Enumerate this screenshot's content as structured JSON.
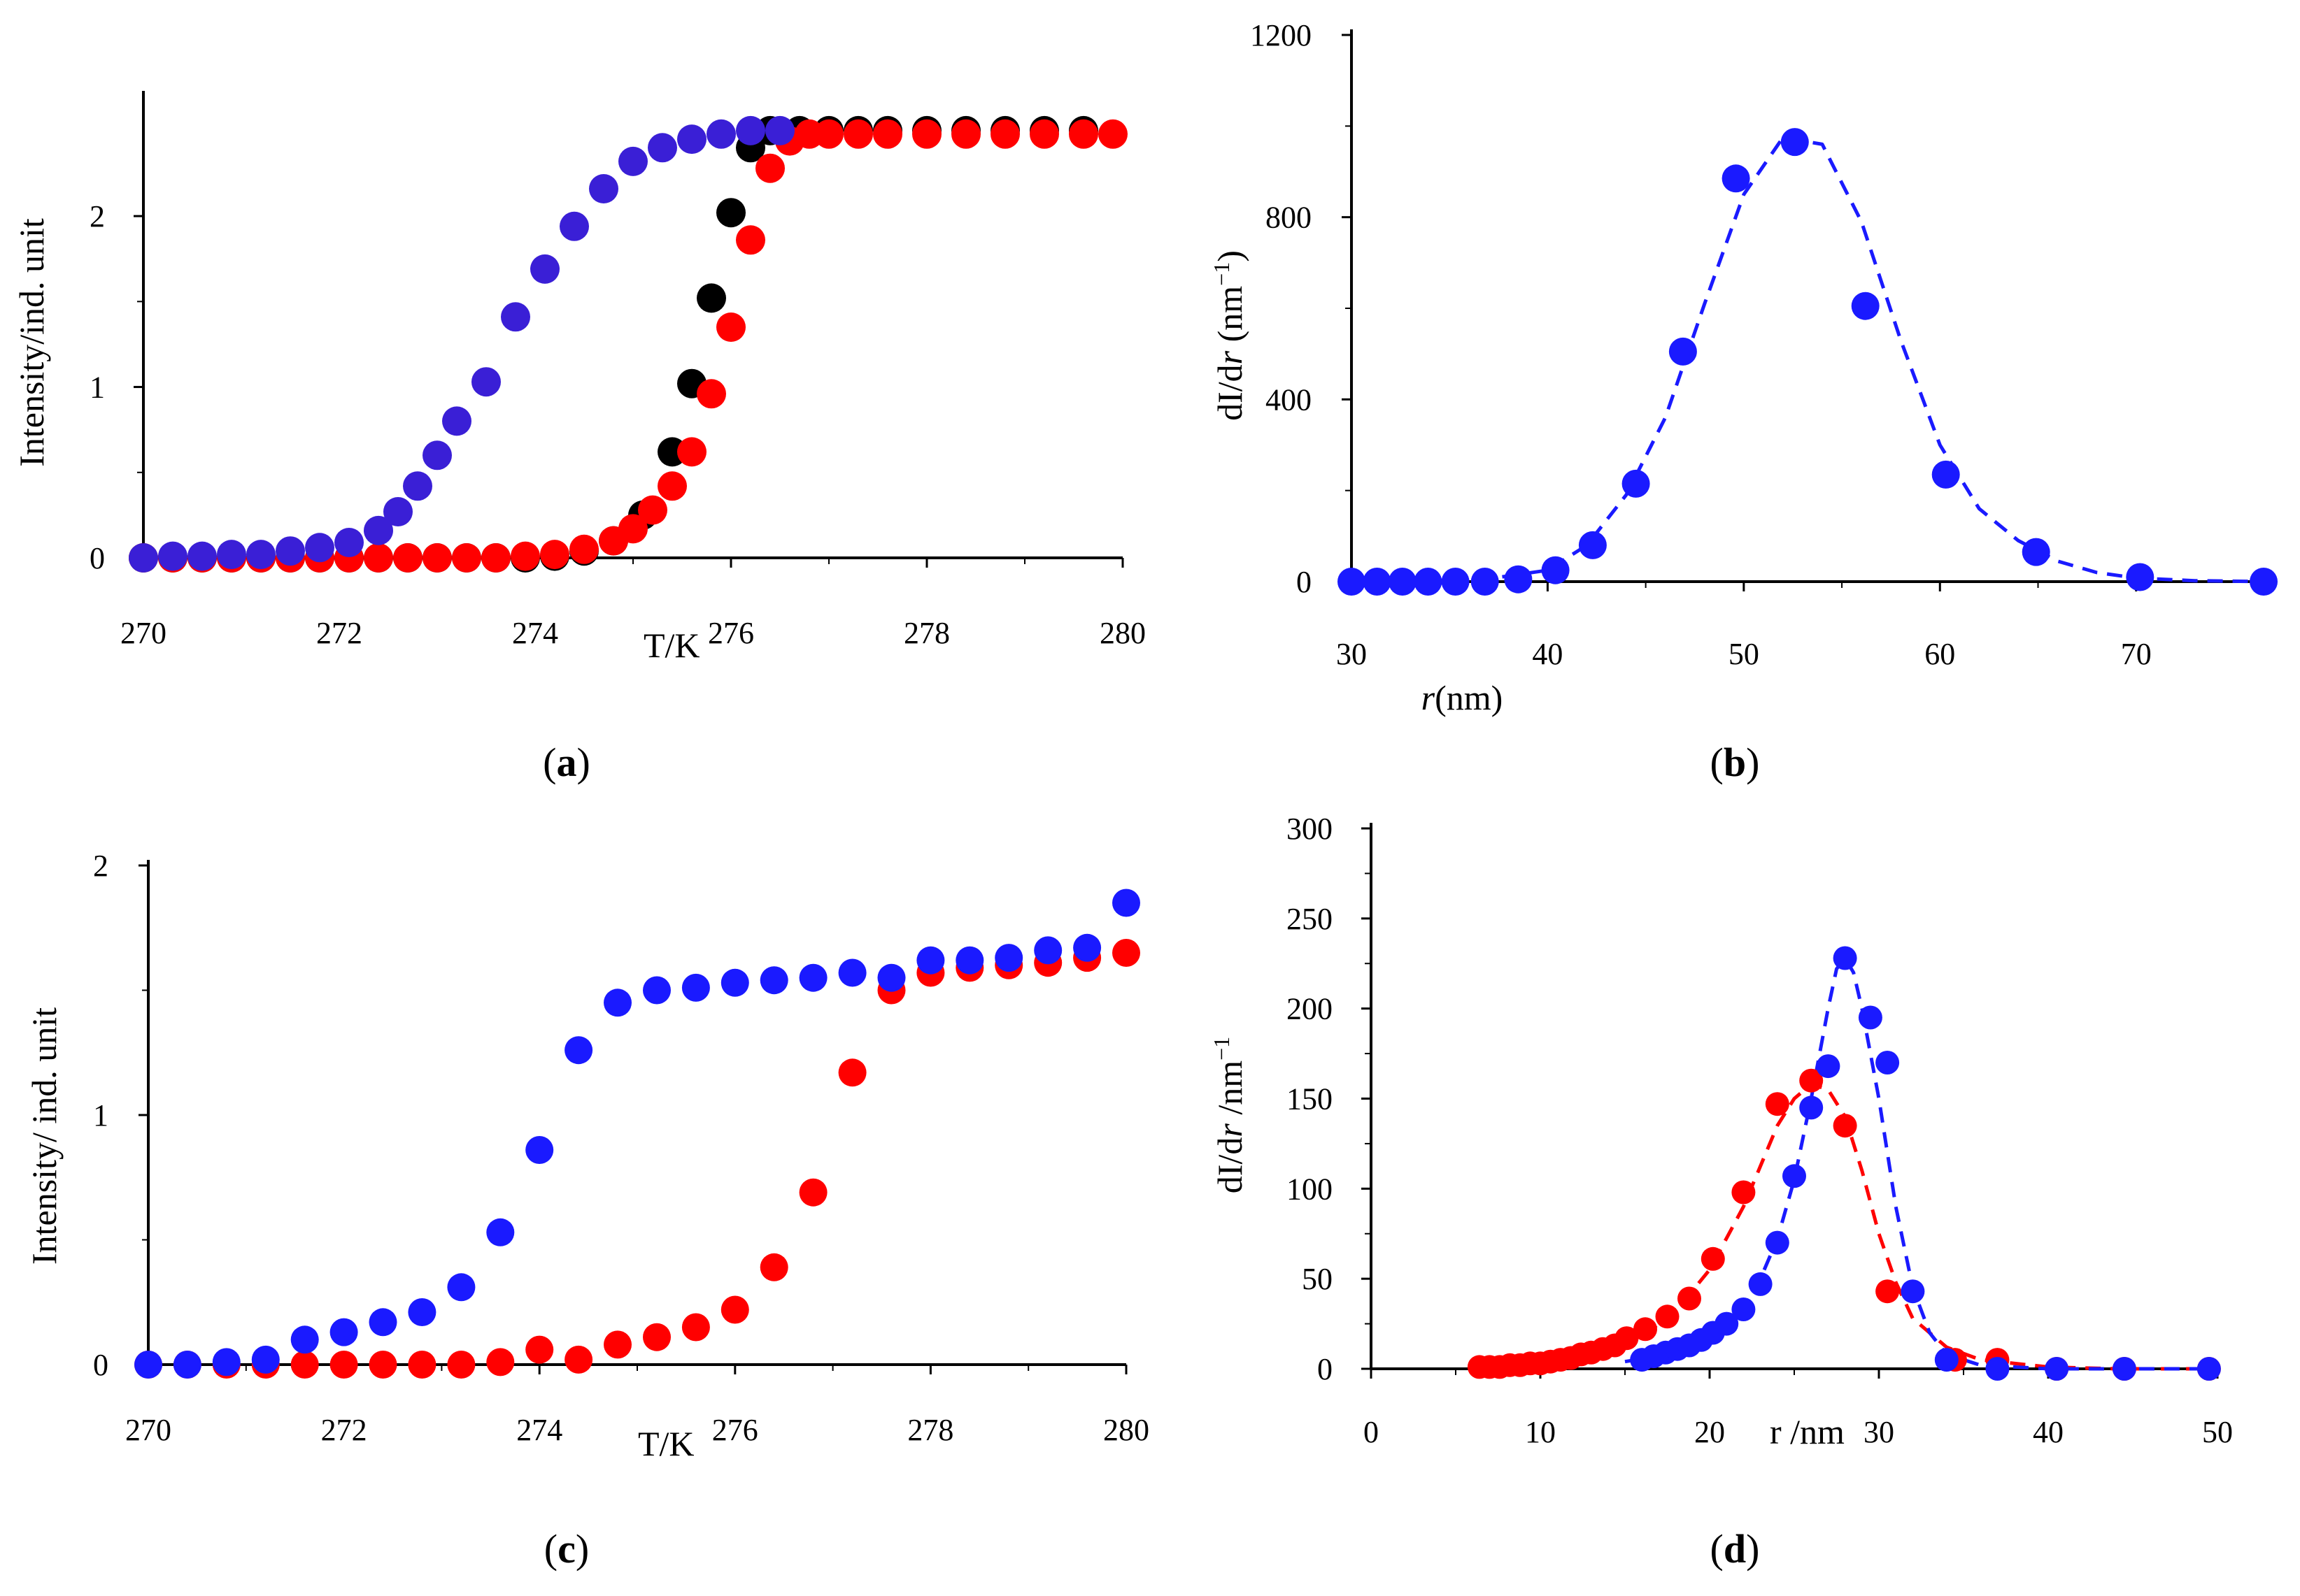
{
  "colors": {
    "blue": "#1a1aff",
    "red": "#ff0000",
    "black": "#000000",
    "purple_blue": "#3a1fd6"
  },
  "chart_data": [
    {
      "id": "a",
      "type": "scatter",
      "panel_label": "(a)",
      "xlabel": "T/K",
      "ylabel": "Intensity/ind. unit",
      "xlim": [
        270,
        280
      ],
      "ylim": [
        0,
        2.7
      ],
      "xticks": [
        270,
        272,
        274,
        276,
        278,
        280
      ],
      "yticks": [
        0,
        1,
        2
      ],
      "series": [
        {
          "color": "black",
          "x": [
            270.0,
            270.3,
            270.6,
            270.9,
            271.2,
            271.5,
            271.8,
            272.1,
            272.4,
            272.7,
            273.0,
            273.3,
            273.6,
            273.9,
            274.2,
            274.5,
            274.8,
            275.1,
            275.4,
            275.6,
            275.8,
            276.0,
            276.2,
            276.4,
            276.7,
            277.0,
            277.3,
            277.6,
            278.0,
            278.4,
            278.8,
            279.2,
            279.6
          ],
          "y": [
            0,
            0,
            0,
            0,
            0,
            0,
            0,
            0,
            0,
            0,
            0,
            0,
            0,
            0,
            0.01,
            0.04,
            0.1,
            0.25,
            0.62,
            1.02,
            1.52,
            2.02,
            2.4,
            2.5,
            2.5,
            2.5,
            2.5,
            2.5,
            2.5,
            2.5,
            2.5,
            2.5,
            2.5
          ]
        },
        {
          "color": "red",
          "x": [
            270.0,
            270.3,
            270.6,
            270.9,
            271.2,
            271.5,
            271.8,
            272.1,
            272.4,
            272.7,
            273.0,
            273.3,
            273.6,
            273.9,
            274.2,
            274.5,
            274.8,
            275.0,
            275.2,
            275.4,
            275.6,
            275.8,
            276.0,
            276.2,
            276.4,
            276.6,
            276.8,
            277.0,
            277.3,
            277.6,
            278.0,
            278.4,
            278.8,
            279.2,
            279.6,
            279.9
          ],
          "y": [
            0,
            0,
            0,
            0,
            0,
            0,
            0,
            0,
            0,
            0,
            0,
            0,
            0,
            0.01,
            0.02,
            0.05,
            0.1,
            0.17,
            0.28,
            0.42,
            0.62,
            0.96,
            1.35,
            1.86,
            2.28,
            2.44,
            2.48,
            2.48,
            2.48,
            2.48,
            2.48,
            2.48,
            2.48,
            2.48,
            2.48,
            2.48
          ]
        },
        {
          "color": "purple_blue",
          "x": [
            270.0,
            270.3,
            270.6,
            270.9,
            271.2,
            271.5,
            271.8,
            272.1,
            272.4,
            272.6,
            272.8,
            273.0,
            273.2,
            273.5,
            273.8,
            274.1,
            274.4,
            274.7,
            275.0,
            275.3,
            275.6,
            275.9,
            276.2,
            276.5
          ],
          "y": [
            0,
            0.01,
            0.01,
            0.02,
            0.02,
            0.04,
            0.06,
            0.09,
            0.16,
            0.27,
            0.42,
            0.6,
            0.8,
            1.03,
            1.41,
            1.69,
            1.94,
            2.16,
            2.32,
            2.4,
            2.45,
            2.48,
            2.5,
            2.5
          ]
        }
      ]
    },
    {
      "id": "b",
      "type": "scatter",
      "panel_label": "(b)",
      "xlabel_italic": "r",
      "xlabel_rest": "(nm)",
      "ylabel_a": "dI/d",
      "ylabel_italic": "r",
      "ylabel_b": " (nm",
      "ylabel_sup": "−1",
      "ylabel_c": ")",
      "xlim": [
        30,
        77
      ],
      "ylim": [
        0,
        1200
      ],
      "xticks": [
        30,
        40,
        50,
        60,
        70
      ],
      "yticks": [
        0,
        400,
        800,
        1200
      ],
      "fit_line": "dashed",
      "series": [
        {
          "color": "blue",
          "x": [
            30.0,
            31.3,
            32.6,
            33.9,
            35.3,
            36.8,
            38.5,
            40.4,
            42.3,
            44.5,
            46.9,
            49.6,
            52.6,
            56.2,
            60.3,
            64.9,
            70.2,
            76.5
          ],
          "y": [
            0,
            0,
            0,
            0,
            0,
            0,
            5,
            25,
            80,
            215,
            505,
            885,
            965,
            605,
            235,
            65,
            10,
            0
          ],
          "fit_x": [
            30,
            36,
            40,
            42,
            44,
            46,
            48,
            50,
            52,
            54,
            56,
            58,
            60,
            62,
            64,
            66,
            68,
            70,
            73,
            77
          ],
          "fit_y": [
            0,
            0,
            25,
            80,
            190,
            360,
            610,
            850,
            975,
            960,
            790,
            530,
            300,
            160,
            90,
            45,
            20,
            8,
            2,
            0
          ]
        }
      ]
    },
    {
      "id": "c",
      "type": "scatter",
      "panel_label": "(c)",
      "xlabel": "T/K",
      "ylabel": "Intensity/ ind. unit",
      "xlim": [
        270,
        280
      ],
      "ylim": [
        0,
        2
      ],
      "xticks": [
        270,
        272,
        274,
        276,
        278,
        280
      ],
      "yticks": [
        0,
        1,
        2
      ],
      "series": [
        {
          "color": "red",
          "x": [
            270.0,
            270.4,
            270.8,
            271.2,
            271.6,
            272.0,
            272.4,
            272.8,
            273.2,
            273.6,
            274.0,
            274.4,
            274.8,
            275.2,
            275.6,
            276.0,
            276.4,
            276.8,
            277.2,
            277.6,
            278.0,
            278.4,
            278.8,
            279.2,
            279.6,
            280.0
          ],
          "y": [
            0,
            0,
            0,
            0,
            0,
            0,
            0,
            0,
            0,
            0.01,
            0.06,
            0.02,
            0.08,
            0.11,
            0.15,
            0.22,
            0.39,
            0.69,
            1.17,
            1.5,
            1.57,
            1.59,
            1.6,
            1.61,
            1.63,
            1.65
          ]
        },
        {
          "color": "blue",
          "x": [
            270.0,
            270.4,
            270.8,
            271.2,
            271.6,
            272.0,
            272.4,
            272.8,
            273.2,
            273.6,
            274.0,
            274.4,
            274.8,
            275.2,
            275.6,
            276.0,
            276.4,
            276.8,
            277.2,
            277.6,
            278.0,
            278.4,
            278.8,
            279.2,
            279.6,
            280.0
          ],
          "y": [
            0,
            0,
            0.01,
            0.02,
            0.1,
            0.13,
            0.17,
            0.21,
            0.31,
            0.53,
            0.86,
            1.26,
            1.45,
            1.5,
            1.51,
            1.53,
            1.54,
            1.55,
            1.57,
            1.55,
            1.62,
            1.62,
            1.63,
            1.66,
            1.67,
            1.85
          ]
        }
      ]
    },
    {
      "id": "d",
      "type": "scatter",
      "panel_label": "(d)",
      "xlabel": "r /nm",
      "ylabel_a": "dI/d",
      "ylabel_italic": "r",
      "ylabel_b": " /nm",
      "ylabel_sup": "−1",
      "xlim": [
        0,
        50
      ],
      "ylim": [
        0,
        300
      ],
      "xticks": [
        0,
        10,
        20,
        30,
        40,
        50
      ],
      "yticks": [
        0,
        50,
        100,
        150,
        200,
        250,
        300
      ],
      "fit_line": "dashed",
      "series": [
        {
          "color": "red",
          "x": [
            6.4,
            7.0,
            7.6,
            8.2,
            8.8,
            9.4,
            10.0,
            10.6,
            11.2,
            11.8,
            12.4,
            13.0,
            13.7,
            14.4,
            15.1,
            16.2,
            17.5,
            18.8,
            20.2,
            22.0,
            24.0,
            26.0,
            28.0,
            30.5,
            34.5,
            37.0,
            40.5,
            44.5,
            49.5
          ],
          "y": [
            1,
            1,
            1,
            2,
            2,
            3,
            3,
            4,
            5,
            6,
            8,
            9,
            11,
            13,
            17,
            22,
            29,
            39,
            61,
            98,
            147,
            160,
            135,
            43,
            5,
            5,
            0,
            0,
            0
          ],
          "fit_x": [
            6,
            8,
            10,
            12,
            14,
            16,
            18,
            20,
            22,
            24,
            25,
            26,
            27,
            28,
            29,
            30,
            31,
            32,
            34,
            36,
            40,
            44,
            50
          ],
          "fit_y": [
            1,
            2,
            3,
            6,
            10,
            18,
            32,
            55,
            90,
            135,
            150,
            158,
            155,
            140,
            110,
            75,
            48,
            28,
            12,
            5,
            1,
            0,
            0
          ]
        },
        {
          "color": "blue",
          "x": [
            16.0,
            16.7,
            17.4,
            18.1,
            18.8,
            19.5,
            20.2,
            21.0,
            22.0,
            23.0,
            24.0,
            25.0,
            26.0,
            27.0,
            28.0,
            29.5,
            30.5,
            32.0,
            34.0,
            37.0,
            40.5,
            44.5,
            49.5
          ],
          "y": [
            5,
            7,
            9,
            11,
            13,
            16,
            20,
            25,
            33,
            47,
            70,
            107,
            145,
            168,
            228,
            195,
            170,
            43,
            5,
            0,
            0,
            0,
            0
          ],
          "fit_x": [
            15,
            17,
            19,
            21,
            22,
            23,
            24,
            25,
            26,
            27,
            27.5,
            28,
            28.5,
            29,
            30,
            31,
            32,
            33,
            34,
            36,
            40,
            44,
            50
          ],
          "fit_y": [
            4,
            7,
            13,
            25,
            35,
            50,
            72,
            105,
            150,
            200,
            222,
            228,
            220,
            200,
            150,
            90,
            45,
            20,
            8,
            2,
            0,
            0,
            0
          ]
        }
      ]
    }
  ]
}
